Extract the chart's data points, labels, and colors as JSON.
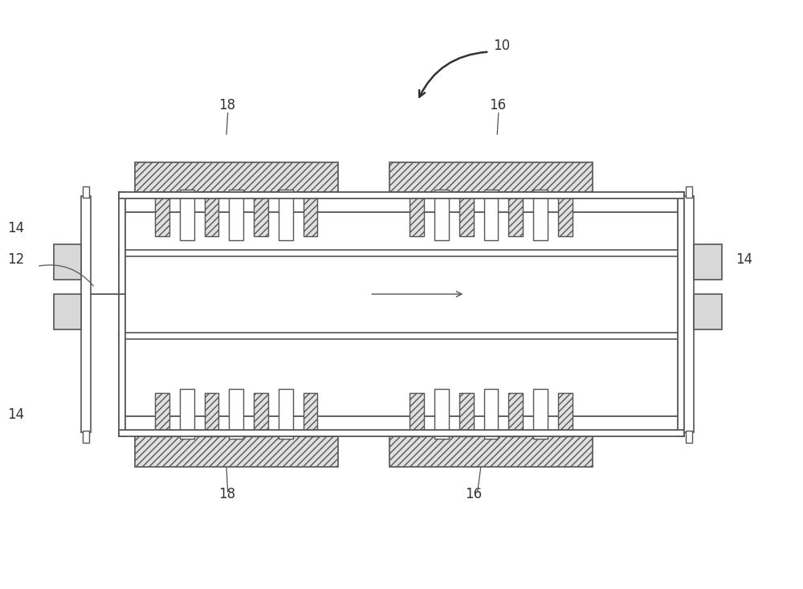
{
  "bg_color": "#ffffff",
  "lc": "#555555",
  "lw": 1.3,
  "hatch_fc": "#e0e0e0",
  "spring_fc": "#d8d8d8",
  "white": "#ffffff",
  "label_color": "#333333",
  "fig_width": 10.0,
  "fig_height": 7.33,
  "dpi": 100
}
